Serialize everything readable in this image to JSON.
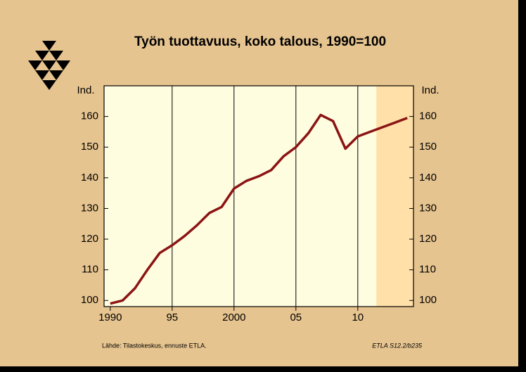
{
  "chart_data": {
    "type": "line",
    "title": "Työn tuottavuus, koko talous, 1990=100",
    "y_label": "Ind.",
    "source": "Lähde:   Tilastokeskus, ennuste ETLA.",
    "code": "ETLA S12.2/b235",
    "x": [
      1990,
      1991,
      1992,
      1993,
      1994,
      1995,
      1996,
      1997,
      1998,
      1999,
      2000,
      2001,
      2002,
      2003,
      2004,
      2005,
      2006,
      2007,
      2008,
      2009,
      2010,
      2011,
      2012,
      2013,
      2014
    ],
    "values": [
      99,
      100,
      104,
      110,
      115.5,
      118,
      121,
      124.5,
      128.5,
      130.5,
      136.5,
      139,
      140.5,
      142.5,
      147,
      150,
      154.5,
      160.5,
      158.5,
      149.5,
      153.5,
      155,
      156.5,
      158,
      159.5
    ],
    "color": "#8b1414",
    "xlim": [
      1989.5,
      2014.5
    ],
    "xticks": [
      1990,
      {
        "value": 1995,
        "label": "95"
      },
      2000,
      {
        "value": 2005,
        "label": "05"
      },
      {
        "value": 2010,
        "label": "10"
      }
    ],
    "ylim": [
      98,
      170
    ],
    "yticks": [
      100,
      110,
      120,
      130,
      140,
      150,
      160
    ],
    "shaded_region": [
      2011.5,
      2014.5
    ],
    "grid": true
  }
}
